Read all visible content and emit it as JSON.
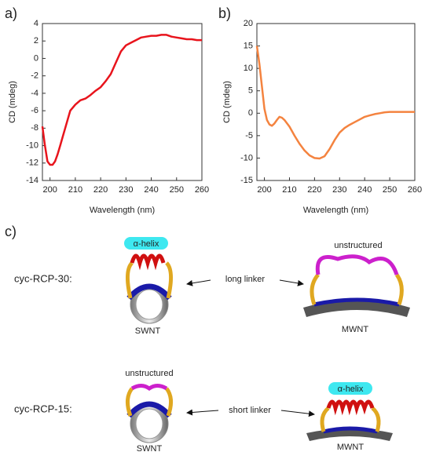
{
  "chart_data": [
    {
      "type": "line",
      "label": "a)",
      "x_label": "Wavelength (nm)",
      "y_label": "CD (mdeg)",
      "color": "#e8141c",
      "x": [
        197,
        198,
        199,
        200,
        201,
        202,
        203,
        204,
        205,
        206,
        207,
        208,
        210,
        212,
        214,
        216,
        218,
        220,
        222,
        224,
        226,
        228,
        230,
        232,
        234,
        236,
        238,
        240,
        242,
        244,
        246,
        248,
        250,
        252,
        254,
        256,
        258,
        260
      ],
      "values": [
        -7.8,
        -10,
        -11.8,
        -12.2,
        -12.2,
        -11.8,
        -11,
        -10,
        -9,
        -8,
        -7,
        -6,
        -5.3,
        -4.8,
        -4.6,
        -4.2,
        -3.7,
        -3.3,
        -2.6,
        -1.8,
        -0.5,
        0.8,
        1.5,
        1.8,
        2.1,
        2.4,
        2.5,
        2.6,
        2.6,
        2.7,
        2.7,
        2.5,
        2.4,
        2.3,
        2.2,
        2.2,
        2.1,
        2.1
      ],
      "xlim": [
        197,
        260
      ],
      "xticks": [
        200,
        210,
        220,
        230,
        240,
        250,
        260
      ],
      "ylim": [
        -14,
        4
      ],
      "yticks": [
        -14,
        -12,
        -10,
        -8,
        -6,
        -4,
        -2,
        0,
        2,
        4
      ]
    },
    {
      "type": "line",
      "label": "b)",
      "x_label": "Wavelength (nm)",
      "y_label": "CD (mdeg)",
      "color": "#f4833f",
      "x": [
        197,
        198,
        199,
        200,
        201,
        202,
        203,
        204,
        205,
        206,
        207,
        208,
        210,
        212,
        214,
        216,
        218,
        220,
        222,
        224,
        226,
        228,
        230,
        232,
        234,
        236,
        238,
        240,
        242,
        244,
        246,
        248,
        250,
        254,
        260
      ],
      "values": [
        15,
        11,
        6,
        1,
        -1.5,
        -2.5,
        -2.8,
        -2.3,
        -1.5,
        -0.8,
        -1,
        -1.5,
        -3,
        -5,
        -6.8,
        -8.3,
        -9.4,
        -10,
        -10.1,
        -9.6,
        -8,
        -6,
        -4.3,
        -3.3,
        -2.6,
        -2,
        -1.4,
        -0.8,
        -0.5,
        -0.2,
        0,
        0.2,
        0.3,
        0.3,
        0.3
      ],
      "xlim": [
        197,
        260
      ],
      "xticks": [
        200,
        210,
        220,
        230,
        240,
        250,
        260
      ],
      "ylim": [
        -15,
        20
      ],
      "yticks": [
        -15,
        -10,
        -5,
        0,
        5,
        10,
        15,
        20
      ]
    }
  ],
  "panel_c": {
    "label": "c)",
    "rows": [
      {
        "peptide": "cyc-RCP-30:",
        "swnt_state": "α-helix",
        "swnt": "SWNT",
        "linker": "long linker",
        "mwnt_state": "unstructured",
        "mwnt": "MWNT"
      },
      {
        "peptide": "cyc-RCP-15:",
        "swnt_state": "unstructured",
        "swnt": "SWNT",
        "linker": "short linker",
        "mwnt_state": "α-helix",
        "mwnt": "MWNT"
      }
    ]
  }
}
